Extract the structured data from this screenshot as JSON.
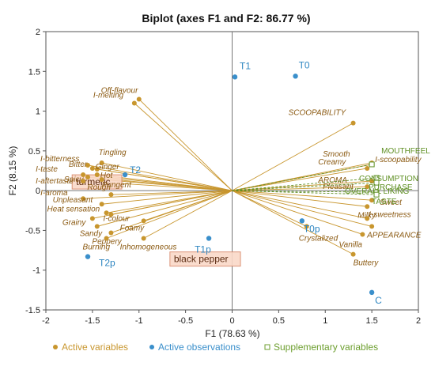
{
  "chart_data": {
    "type": "scatter",
    "title": "Biplot (axes F1 and F2: 86.77 %)",
    "xlabel": "F1 (78.63 %)",
    "ylabel": "F2 (8.15 %)",
    "xlim": [
      -2,
      2
    ],
    "ylim": [
      -1.5,
      2
    ],
    "xticks": [
      "-2",
      "-1.5",
      "-1",
      "-0.5",
      "0",
      "0.5",
      "1",
      "1.5",
      "2"
    ],
    "yticks": [
      "-1.5",
      "-1",
      "-0.5",
      "0",
      "0.5",
      "1",
      "1.5",
      "2"
    ],
    "grid": false,
    "legend_position": "bottom",
    "legend": [
      {
        "label": "Active variables",
        "color": "#C8962E",
        "marker": "dot"
      },
      {
        "label": "Active observations",
        "color": "#3A8FCB",
        "marker": "dot"
      },
      {
        "label": "Supplementary variables",
        "color": "#6C9E2E",
        "marker": "square-outline"
      }
    ],
    "colors": {
      "variable": "#C8962E",
      "variable_text": "#8B5A12",
      "observation": "#3A8FCB",
      "observation_text": "#2E86C1",
      "supplementary": "#5E8F22",
      "box_fill": "#FAD9C8",
      "box_border": "#D9896A"
    },
    "variables": [
      {
        "label": "Off-flavour",
        "x": -1.0,
        "y": 1.15
      },
      {
        "label": "I-melting",
        "x": -1.05,
        "y": 1.1
      },
      {
        "label": "Tingling",
        "x": -1.4,
        "y": 0.35
      },
      {
        "label": "I-bitterness",
        "x": -1.55,
        "y": 0.32
      },
      {
        "label": "Bitter",
        "x": -1.5,
        "y": 0.28
      },
      {
        "label": "Ginger",
        "x": -1.45,
        "y": 0.27
      },
      {
        "label": "I-taste",
        "x": -1.6,
        "y": 0.2
      },
      {
        "label": "Hot",
        "x": -1.45,
        "y": 0.2
      },
      {
        "label": "Spicy",
        "x": -1.55,
        "y": 0.17
      },
      {
        "label": "Pungent",
        "x": -1.4,
        "y": 0.14
      },
      {
        "label": "I-aftertaste",
        "x": -1.6,
        "y": 0.12
      },
      {
        "label": "I-aroma",
        "x": -1.6,
        "y": -0.1
      },
      {
        "label": "Rough",
        "x": -1.3,
        "y": -0.05
      },
      {
        "label": "Unpleasant",
        "x": -1.4,
        "y": -0.17
      },
      {
        "label": "Heat sensation",
        "x": -1.35,
        "y": -0.28
      },
      {
        "label": "I-colour",
        "x": -1.3,
        "y": -0.3
      },
      {
        "label": "Grainy",
        "x": -1.5,
        "y": -0.35
      },
      {
        "label": "Sandy",
        "x": -1.45,
        "y": -0.45
      },
      {
        "label": "Foamy",
        "x": -0.95,
        "y": -0.38
      },
      {
        "label": "Peppery",
        "x": -1.3,
        "y": -0.53
      },
      {
        "label": "Burning",
        "x": -1.35,
        "y": -0.6
      },
      {
        "label": "Inhomogeneous",
        "x": -0.95,
        "y": -0.6
      },
      {
        "label": "SCOOPABILITY",
        "x": 1.3,
        "y": 0.85
      },
      {
        "label": "Smooth",
        "x": 1.5,
        "y": 0.35
      },
      {
        "label": "I-scoopability",
        "x": 1.5,
        "y": 0.33
      },
      {
        "label": "Creamy",
        "x": 1.45,
        "y": 0.28
      },
      {
        "label": "Pleasant",
        "x": 1.5,
        "y": 0.12
      },
      {
        "label": "AROMA",
        "x": 1.45,
        "y": 0.05
      },
      {
        "label": "Sweet",
        "x": 1.5,
        "y": -0.12
      },
      {
        "label": "Milky",
        "x": 1.45,
        "y": -0.2
      },
      {
        "label": "I-sweetness",
        "x": 1.45,
        "y": -0.35
      },
      {
        "label": "APPEARANCE",
        "x": 1.5,
        "y": -0.45
      },
      {
        "label": "Crystalized",
        "x": 0.8,
        "y": -0.45
      },
      {
        "label": "Vanilla",
        "x": 1.4,
        "y": -0.55
      },
      {
        "label": "Buttery",
        "x": 1.3,
        "y": -0.8
      }
    ],
    "supplementary_variables": [
      {
        "label": "MOUTHFEEL",
        "x": 1.5,
        "y": 0.33
      },
      {
        "label": "CONSUMPTION",
        "x": 1.55,
        "y": 0.16
      },
      {
        "label": "PURCHASE",
        "x": 1.55,
        "y": 0.1
      },
      {
        "label": "OVERALL LIKING",
        "x": 1.55,
        "y": -0.02
      },
      {
        "label": "TASTE",
        "x": 1.55,
        "y": -0.05
      }
    ],
    "observations": [
      {
        "label": "T1",
        "x": 0.03,
        "y": 1.43
      },
      {
        "label": "T0",
        "x": 0.68,
        "y": 1.44
      },
      {
        "label": "T2",
        "x": -1.15,
        "y": 0.2
      },
      {
        "label": "T1p",
        "x": -0.25,
        "y": -0.6
      },
      {
        "label": "T0p",
        "x": 0.75,
        "y": -0.38
      },
      {
        "label": "T2p",
        "x": -1.55,
        "y": -0.83
      },
      {
        "label": "C",
        "x": 1.5,
        "y": -1.28
      }
    ],
    "annotations": [
      {
        "label": "turmeric",
        "x": -1.65,
        "y": 0.1
      },
      {
        "label": "black pepper",
        "x": -0.6,
        "y": -0.87
      }
    ]
  }
}
